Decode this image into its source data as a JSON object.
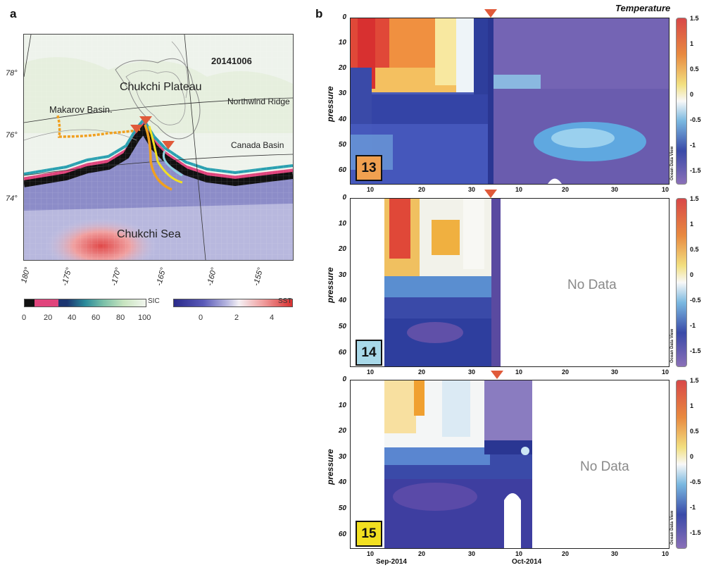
{
  "panel_a": {
    "letter": "a",
    "date_label": "20141006",
    "place_labels": {
      "chukchi_plateau": "Chukchi Plateau",
      "northwind_ridge": "Northwind Ridge",
      "makarov_basin": "Makarov Basin.",
      "canada_basin": "Canada Basin",
      "chukchi_sea": "Chukchi Sea"
    },
    "lat_labels": [
      "78°",
      "76°",
      "74°"
    ],
    "lon_labels": [
      "180°",
      "-175°",
      "-170°",
      "-165°",
      "-160°",
      "-155°"
    ],
    "sic_colorbar": {
      "label": "SIC",
      "ticks": [
        "0",
        "20",
        "40",
        "60",
        "80",
        "100"
      ]
    },
    "sst_colorbar": {
      "label": "SST",
      "ticks": [
        "0",
        "2",
        "4"
      ]
    },
    "colors": {
      "float13": "#f0a020",
      "float14": "#8ed0e0",
      "float15": "#f2e020",
      "marker": "#e05a3a"
    }
  },
  "panel_b": {
    "letter": "b",
    "title": "Temperature",
    "axis_label": "pressure",
    "y_ticks": [
      "0",
      "10",
      "20",
      "30",
      "40",
      "50",
      "60"
    ],
    "x_ticks_full": [
      "10",
      "20",
      "30",
      "10",
      "20",
      "30",
      "10"
    ],
    "month_labels": [
      "Sep-2014",
      "Oct-2014"
    ],
    "colorbar_ticks": [
      "1.5",
      "1",
      "0.5",
      "0",
      "-0.5",
      "-1",
      "-1.5"
    ],
    "watermark": "Ocean Data View",
    "plots": [
      {
        "id": "13",
        "badge_color": "#f0a050",
        "no_data": ""
      },
      {
        "id": "14",
        "badge_color": "#a8d8e8",
        "no_data": "No Data"
      },
      {
        "id": "15",
        "badge_color": "#f2e020",
        "no_data": "No Data"
      }
    ]
  }
}
